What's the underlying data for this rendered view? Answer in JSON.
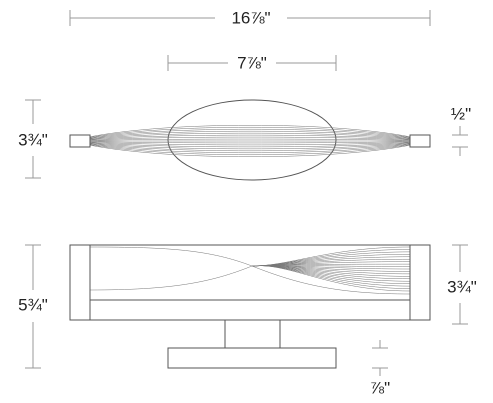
{
  "dimensions": {
    "overall_width": "16⅞\"",
    "canopy_width": "7⅞\"",
    "top_view_depth": "3¾\"",
    "end_cap_thickness": "½\"",
    "overall_height": "5¾\"",
    "shade_height": "3¾\"",
    "canopy_thickness": "⅞\""
  }
}
